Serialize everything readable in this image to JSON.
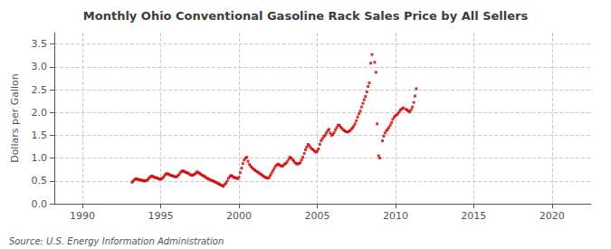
{
  "chart_data": {
    "type": "scatter",
    "title": "Monthly Ohio Conventional Gasoline Rack Sales Price by All Sellers",
    "ylabel": "Dollars per Gallon",
    "annotations": [
      "Source: U.S. Energy Information Administration"
    ],
    "color": "#cc0000",
    "marker": "square",
    "grid": true,
    "xlim": [
      1988.2,
      2022.5
    ],
    "ylim": [
      0.0,
      3.75
    ],
    "xticks": [
      1990,
      1995,
      2000,
      2005,
      2010,
      2015,
      2020
    ],
    "yticks": [
      {
        "value": 0.0,
        "label": "0.0"
      },
      0.5,
      {
        "value": 1.0,
        "label": "1.0"
      },
      1.5,
      {
        "value": 2.0,
        "label": "2.0"
      },
      2.5,
      {
        "value": 3.0,
        "label": "3.0"
      },
      3.5
    ],
    "x": [
      1993.17,
      1993.25,
      1993.33,
      1993.42,
      1993.5,
      1993.58,
      1993.67,
      1993.75,
      1993.83,
      1993.92,
      1994.0,
      1994.08,
      1994.17,
      1994.25,
      1994.33,
      1994.42,
      1994.5,
      1994.58,
      1994.67,
      1994.75,
      1994.83,
      1994.92,
      1995.0,
      1995.08,
      1995.17,
      1995.25,
      1995.33,
      1995.42,
      1995.5,
      1995.58,
      1995.67,
      1995.75,
      1995.83,
      1995.92,
      1996.0,
      1996.08,
      1996.17,
      1996.25,
      1996.33,
      1996.42,
      1996.5,
      1996.58,
      1996.67,
      1996.75,
      1996.83,
      1996.92,
      1997.0,
      1997.08,
      1997.17,
      1997.25,
      1997.33,
      1997.42,
      1997.5,
      1997.58,
      1997.67,
      1997.75,
      1997.83,
      1997.92,
      1998.0,
      1998.08,
      1998.17,
      1998.25,
      1998.33,
      1998.42,
      1998.5,
      1998.58,
      1998.67,
      1998.75,
      1998.83,
      1998.92,
      1999.0,
      1999.08,
      1999.17,
      1999.25,
      1999.33,
      1999.42,
      1999.5,
      1999.58,
      1999.67,
      1999.75,
      1999.83,
      1999.92,
      2000.0,
      2000.08,
      2000.17,
      2000.25,
      2000.33,
      2000.42,
      2000.5,
      2000.58,
      2000.67,
      2000.75,
      2000.83,
      2000.92,
      2001.0,
      2001.08,
      2001.17,
      2001.25,
      2001.33,
      2001.42,
      2001.5,
      2001.58,
      2001.67,
      2001.75,
      2001.83,
      2001.92,
      2002.0,
      2002.08,
      2002.17,
      2002.25,
      2002.33,
      2002.42,
      2002.5,
      2002.58,
      2002.67,
      2002.75,
      2002.83,
      2002.92,
      2003.0,
      2003.08,
      2003.17,
      2003.25,
      2003.33,
      2003.42,
      2003.5,
      2003.58,
      2003.67,
      2003.75,
      2003.83,
      2003.92,
      2004.0,
      2004.08,
      2004.17,
      2004.25,
      2004.33,
      2004.42,
      2004.5,
      2004.58,
      2004.67,
      2004.75,
      2004.83,
      2004.92,
      2005.0,
      2005.08,
      2005.17,
      2005.25,
      2005.33,
      2005.42,
      2005.5,
      2005.58,
      2005.67,
      2005.75,
      2005.83,
      2005.92,
      2006.0,
      2006.08,
      2006.17,
      2006.25,
      2006.33,
      2006.42,
      2006.5,
      2006.58,
      2006.67,
      2006.75,
      2006.83,
      2006.92,
      2007.0,
      2007.08,
      2007.17,
      2007.25,
      2007.33,
      2007.42,
      2007.5,
      2007.58,
      2007.67,
      2007.75,
      2007.83,
      2007.92,
      2008.0,
      2008.08,
      2008.17,
      2008.25,
      2008.33,
      2008.42,
      2008.5,
      2008.67,
      2008.75,
      2008.83,
      2008.92,
      2009.0,
      2009.17,
      2009.25,
      2009.33,
      2009.42,
      2009.5,
      2009.58,
      2009.67,
      2009.75,
      2009.83,
      2009.92,
      2010.0,
      2010.08,
      2010.17,
      2010.25,
      2010.33,
      2010.42,
      2010.5,
      2010.67,
      2010.75,
      2010.83,
      2010.92,
      2011.0,
      2011.08,
      2011.17,
      2011.25,
      2011.33
    ],
    "values": [
      0.47,
      0.5,
      0.53,
      0.55,
      0.54,
      0.53,
      0.52,
      0.52,
      0.51,
      0.5,
      0.5,
      0.51,
      0.53,
      0.56,
      0.59,
      0.61,
      0.6,
      0.58,
      0.57,
      0.57,
      0.55,
      0.54,
      0.54,
      0.55,
      0.58,
      0.62,
      0.65,
      0.66,
      0.65,
      0.63,
      0.62,
      0.61,
      0.6,
      0.59,
      0.59,
      0.61,
      0.64,
      0.68,
      0.71,
      0.72,
      0.71,
      0.69,
      0.68,
      0.67,
      0.65,
      0.63,
      0.62,
      0.63,
      0.65,
      0.67,
      0.7,
      0.68,
      0.66,
      0.64,
      0.62,
      0.61,
      0.59,
      0.57,
      0.55,
      0.54,
      0.52,
      0.51,
      0.5,
      0.49,
      0.47,
      0.46,
      0.44,
      0.43,
      0.41,
      0.4,
      0.38,
      0.42,
      0.45,
      0.5,
      0.56,
      0.6,
      0.62,
      0.6,
      0.58,
      0.57,
      0.56,
      0.55,
      0.58,
      0.68,
      0.78,
      0.88,
      0.96,
      1.0,
      1.02,
      0.93,
      0.86,
      0.82,
      0.79,
      0.76,
      0.74,
      0.72,
      0.7,
      0.68,
      0.66,
      0.64,
      0.62,
      0.6,
      0.58,
      0.57,
      0.56,
      0.57,
      0.62,
      0.67,
      0.72,
      0.77,
      0.82,
      0.85,
      0.87,
      0.85,
      0.83,
      0.82,
      0.84,
      0.87,
      0.88,
      0.92,
      0.97,
      1.02,
      1.0,
      0.97,
      0.94,
      0.9,
      0.88,
      0.87,
      0.88,
      0.9,
      0.96,
      1.02,
      1.1,
      1.18,
      1.24,
      1.3,
      1.27,
      1.23,
      1.2,
      1.18,
      1.15,
      1.13,
      1.15,
      1.2,
      1.3,
      1.38,
      1.43,
      1.47,
      1.5,
      1.55,
      1.6,
      1.63,
      1.55,
      1.5,
      1.52,
      1.56,
      1.62,
      1.67,
      1.72,
      1.72,
      1.68,
      1.65,
      1.62,
      1.6,
      1.58,
      1.57,
      1.58,
      1.6,
      1.63,
      1.66,
      1.7,
      1.75,
      1.82,
      1.9,
      1.97,
      2.03,
      2.12,
      2.2,
      2.28,
      2.35,
      2.45,
      2.57,
      2.65,
      3.08,
      3.27,
      3.1,
      2.88,
      1.75,
      1.05,
      1.0,
      1.38,
      1.48,
      1.55,
      1.6,
      1.63,
      1.67,
      1.72,
      1.78,
      1.85,
      1.9,
      1.93,
      1.95,
      1.98,
      2.02,
      2.06,
      2.08,
      2.1,
      2.07,
      2.05,
      2.03,
      2.01,
      2.06,
      2.12,
      2.22,
      2.36,
      2.52
    ]
  }
}
